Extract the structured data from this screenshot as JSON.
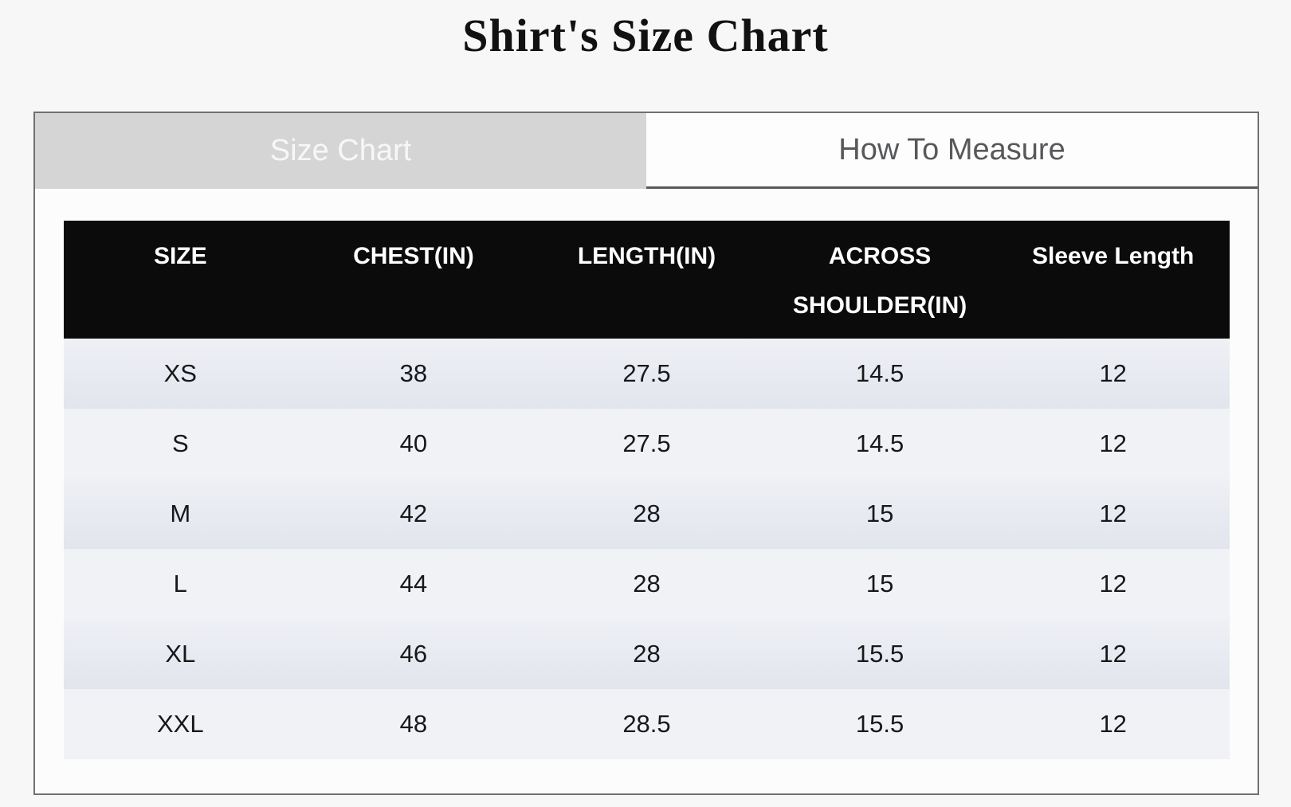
{
  "page": {
    "title": "Shirt's Size Chart"
  },
  "tabs": [
    {
      "label": "Size Chart",
      "active": true
    },
    {
      "label": "How To Measure",
      "active": false
    }
  ],
  "size_table": {
    "columns": [
      "SIZE",
      "CHEST(IN)",
      "LENGTH(IN)",
      "ACROSS SHOULDER(IN)",
      "Sleeve Length"
    ],
    "rows": [
      [
        "XS",
        "38",
        "27.5",
        "14.5",
        "12"
      ],
      [
        "S",
        "40",
        "27.5",
        "14.5",
        "12"
      ],
      [
        "M",
        "42",
        "28",
        "15",
        "12"
      ],
      [
        "L",
        "44",
        "28",
        "15",
        "12"
      ],
      [
        "XL",
        "46",
        "28",
        "15.5",
        "12"
      ],
      [
        "XXL",
        "48",
        "28.5",
        "15.5",
        "12"
      ]
    ]
  },
  "colors": {
    "table_header_bg": "#0b0b0b",
    "table_header_text": "#ffffff",
    "active_tab_bg": "#d5d5d5",
    "active_tab_text": "#f7f7f7",
    "inactive_tab_text": "#57585a",
    "row_stripe_dark": "#e2e5ed",
    "row_stripe_light": "#f1f2f6",
    "panel_border": "#707070"
  }
}
